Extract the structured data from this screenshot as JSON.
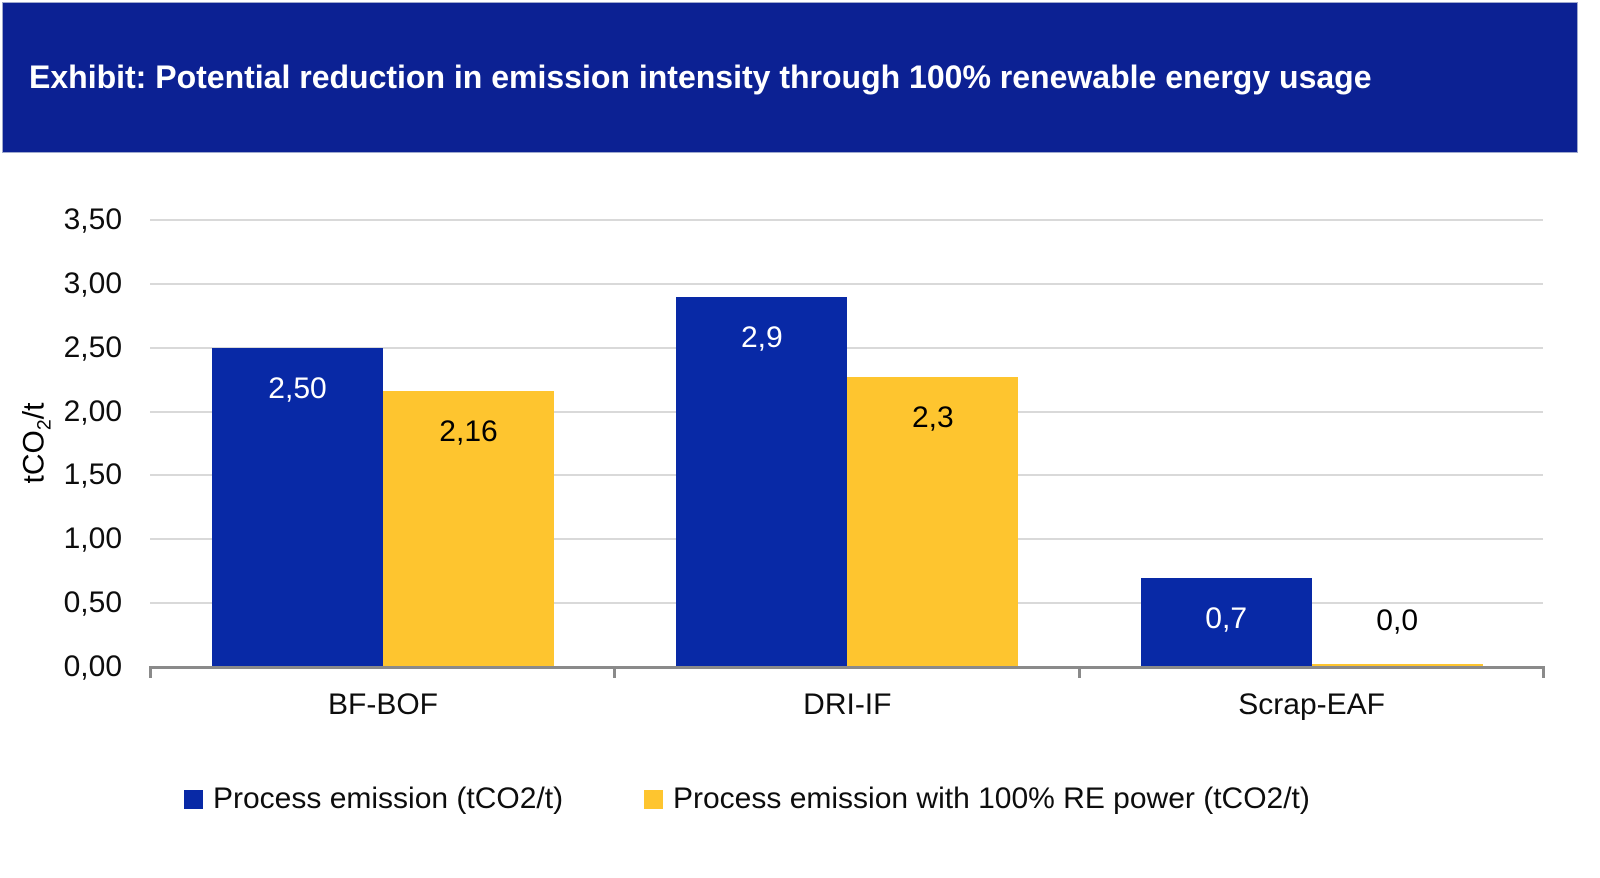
{
  "header": {
    "title": "Exhibit: Potential reduction in emission intensity through 100% renewable energy usage",
    "bg_color": "#0C2193",
    "text_color": "#FFFFFF"
  },
  "chart_data": {
    "type": "bar",
    "title": "Exhibit: Potential reduction in emission intensity through 100% renewable energy usage",
    "categories": [
      "BF-BOF",
      "DRI-IF",
      "Scrap-EAF"
    ],
    "series": [
      {
        "name": "Process emission (tCO2/t)",
        "color": "#0829A6",
        "values": [
          2.5,
          2.9,
          0.7
        ],
        "labels": [
          "2,50",
          "2,9",
          "0,7"
        ],
        "label_color": "#FFFFFF"
      },
      {
        "name": "Process emission with 100% RE power (tCO2/t)",
        "color": "#FEC52F",
        "values": [
          2.16,
          2.27,
          0.02
        ],
        "labels": [
          "2,16",
          "2,3",
          "0,0"
        ],
        "label_color": "#000000"
      }
    ],
    "ylabel": "tCO2/t",
    "ylabel_parts": {
      "pre": "tCO",
      "sub": "2",
      "post": "/t"
    },
    "ylim": [
      0,
      3.5
    ],
    "ytick_step": 0.5,
    "yticks": [
      "0,00",
      "0,50",
      "1,00",
      "1,50",
      "2,00",
      "2,50",
      "3,00",
      "3,50"
    ],
    "grid": true,
    "gridline_color": "#D9D9D9",
    "axis_color": "#8A8A8A",
    "legend_position": "bottom"
  }
}
